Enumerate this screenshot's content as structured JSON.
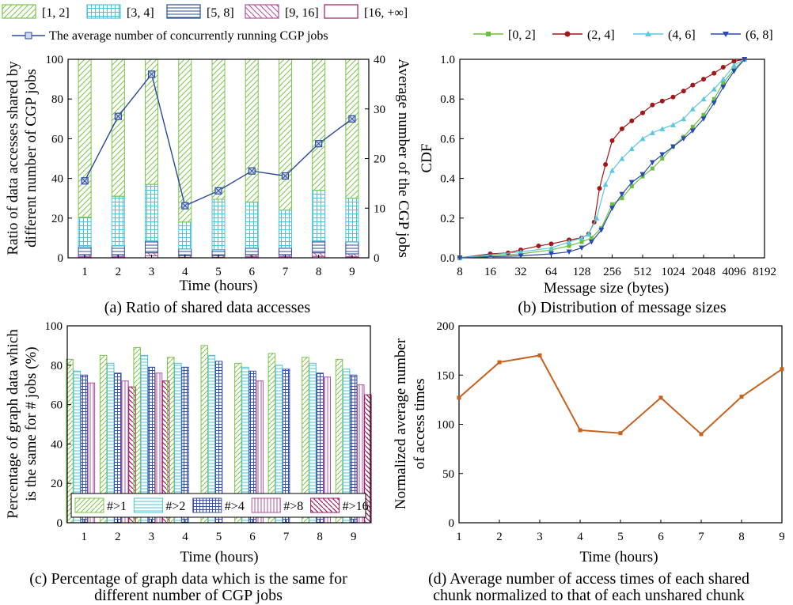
{
  "charts": {
    "a": {
      "type": "bar",
      "caption": "(a) Ratio of shared data accesses",
      "xlabel": "Time (hours)",
      "ylabel_line1": "Ratio of data accesses shared by",
      "ylabel_line2": "different number of CGP jobs",
      "y2label": "Average number of the CGP jobs",
      "legend": [
        "[1, 2]",
        "[3, 4]",
        "[5, 8]",
        "[9, 16]",
        "[16, +∞]"
      ],
      "line_legend": "The average number of concurrently running CGP jobs"
    },
    "b": {
      "type": "line",
      "caption": "(b) Distribution of message sizes",
      "xlabel": "Message size (bytes)",
      "ylabel": "CDF",
      "legend": [
        "[0, 2]",
        "(2, 4]",
        "(4, 6]",
        "(6, 8]"
      ]
    },
    "c": {
      "type": "bar",
      "caption_line1": "(c) Percentage of graph data which is the same for",
      "caption_line2": "different number of CGP jobs",
      "xlabel": "Time (hours)",
      "ylabel_line1": "Percentage of graph data which",
      "ylabel_line2": "is the same for # jobs (%)",
      "legend": [
        "#>1",
        "#>2",
        "#>4",
        "#>8",
        "#>16"
      ]
    },
    "d": {
      "type": "line",
      "caption_line1": "(d) Average number of access times of each shared",
      "caption_line2": "chunk normalized to that of each unshared chunk",
      "xlabel": "Time (hours)",
      "ylabel_line1": "Normalized average number",
      "ylabel_line2": "of access times"
    }
  },
  "chart_data": [
    {
      "id": "a",
      "type": "bar",
      "stacked": true,
      "x": [
        1,
        2,
        3,
        4,
        5,
        6,
        7,
        8,
        9
      ],
      "ylim": [
        0,
        100
      ],
      "y2lim": [
        0,
        40
      ],
      "yticks": [
        0,
        20,
        40,
        60,
        80,
        100
      ],
      "y2ticks": [
        0,
        10,
        20,
        30,
        40
      ],
      "colors": [
        "#7cc44a",
        "#4cc4d8",
        "#2a4a9a",
        "#b050a0",
        "#a01860"
      ],
      "series": [
        {
          "name": "[1, 2]",
          "values": [
            79.5,
            69,
            63,
            82,
            70.5,
            72,
            76,
            66,
            70
          ]
        },
        {
          "name": "[3, 4]",
          "values": [
            15,
            25,
            28.5,
            13.5,
            25.5,
            23,
            19,
            25.5,
            22
          ]
        },
        {
          "name": "[5, 8]",
          "values": [
            4,
            4.5,
            6,
            3.5,
            3,
            3.5,
            3.5,
            6,
            6
          ]
        },
        {
          "name": "[9, 16]",
          "values": [
            1,
            1,
            1.5,
            0.8,
            0.8,
            1,
            1,
            1.8,
            1.5
          ]
        },
        {
          "name": "[16, +∞]",
          "values": [
            0.5,
            0.5,
            1,
            0.2,
            0.2,
            0.5,
            0.5,
            0.7,
            0.5
          ]
        }
      ],
      "line_series": {
        "name": "The average number of concurrently running CGP jobs",
        "color": "#2a4a9a",
        "values": [
          15.5,
          28.5,
          37,
          10.5,
          13.5,
          17.5,
          16.5,
          23,
          28
        ]
      }
    },
    {
      "id": "b",
      "type": "line",
      "xscale": "log2",
      "xticks": [
        8,
        16,
        32,
        64,
        128,
        256,
        512,
        1024,
        2048,
        4096,
        8192
      ],
      "xlim": [
        8,
        8192
      ],
      "ylim": [
        0,
        1
      ],
      "yticks": [
        0.0,
        0.2,
        0.4,
        0.6,
        0.8,
        1.0
      ],
      "series": [
        {
          "name": "[0, 2]",
          "color": "#6cc040",
          "points": [
            [
              8,
              0
            ],
            [
              16,
              0.01
            ],
            [
              32,
              0.02
            ],
            [
              64,
              0.04
            ],
            [
              96,
              0.06
            ],
            [
              128,
              0.08
            ],
            [
              160,
              0.1
            ],
            [
              200,
              0.15
            ],
            [
              256,
              0.27
            ],
            [
              320,
              0.3
            ],
            [
              400,
              0.36
            ],
            [
              512,
              0.41
            ],
            [
              640,
              0.45
            ],
            [
              800,
              0.5
            ],
            [
              1024,
              0.56
            ],
            [
              1300,
              0.61
            ],
            [
              1600,
              0.66
            ],
            [
              2048,
              0.72
            ],
            [
              2600,
              0.8
            ],
            [
              3200,
              0.88
            ],
            [
              4096,
              0.95
            ],
            [
              5200,
              1.0
            ]
          ]
        },
        {
          "name": "(2, 4]",
          "color": "#a01818",
          "points": [
            [
              8,
              0
            ],
            [
              16,
              0.02
            ],
            [
              24,
              0.025
            ],
            [
              32,
              0.04
            ],
            [
              48,
              0.06
            ],
            [
              64,
              0.07
            ],
            [
              96,
              0.09
            ],
            [
              128,
              0.1
            ],
            [
              150,
              0.12
            ],
            [
              170,
              0.18
            ],
            [
              192,
              0.35
            ],
            [
              220,
              0.47
            ],
            [
              256,
              0.59
            ],
            [
              320,
              0.65
            ],
            [
              400,
              0.69
            ],
            [
              512,
              0.73
            ],
            [
              640,
              0.77
            ],
            [
              800,
              0.79
            ],
            [
              1024,
              0.81
            ],
            [
              1300,
              0.84
            ],
            [
              1600,
              0.87
            ],
            [
              2048,
              0.9
            ],
            [
              2600,
              0.93
            ],
            [
              3200,
              0.96
            ],
            [
              4096,
              0.99
            ],
            [
              5200,
              1.0
            ]
          ]
        },
        {
          "name": "(4, 6]",
          "color": "#5cc8e0",
          "points": [
            [
              8,
              0
            ],
            [
              32,
              0.03
            ],
            [
              64,
              0.05
            ],
            [
              96,
              0.08
            ],
            [
              128,
              0.1
            ],
            [
              150,
              0.12
            ],
            [
              180,
              0.2
            ],
            [
              220,
              0.37
            ],
            [
              256,
              0.44
            ],
            [
              320,
              0.5
            ],
            [
              400,
              0.55
            ],
            [
              512,
              0.6
            ],
            [
              640,
              0.63
            ],
            [
              800,
              0.65
            ],
            [
              1024,
              0.67
            ],
            [
              1300,
              0.7
            ],
            [
              1600,
              0.75
            ],
            [
              2048,
              0.8
            ],
            [
              2600,
              0.85
            ],
            [
              3200,
              0.9
            ],
            [
              4096,
              0.97
            ],
            [
              5200,
              1.0
            ]
          ]
        },
        {
          "name": "(6, 8]",
          "color": "#2a4ab0",
          "points": [
            [
              8,
              0
            ],
            [
              32,
              0.01
            ],
            [
              64,
              0.02
            ],
            [
              96,
              0.03
            ],
            [
              128,
              0.05
            ],
            [
              160,
              0.08
            ],
            [
              200,
              0.14
            ],
            [
              256,
              0.25
            ],
            [
              320,
              0.32
            ],
            [
              400,
              0.38
            ],
            [
              512,
              0.42
            ],
            [
              640,
              0.48
            ],
            [
              800,
              0.52
            ],
            [
              1024,
              0.56
            ],
            [
              1300,
              0.6
            ],
            [
              1600,
              0.64
            ],
            [
              2048,
              0.7
            ],
            [
              2600,
              0.78
            ],
            [
              3200,
              0.86
            ],
            [
              4096,
              0.94
            ],
            [
              5200,
              1.0
            ]
          ]
        }
      ]
    },
    {
      "id": "c",
      "type": "bar",
      "x": [
        1,
        2,
        3,
        4,
        5,
        6,
        7,
        8,
        9
      ],
      "ylim": [
        0,
        100
      ],
      "yticks": [
        0,
        20,
        40,
        60,
        80,
        100
      ],
      "colors": [
        "#7cc44a",
        "#4cc4d8",
        "#3a52a8",
        "#b050a0",
        "#a01860"
      ],
      "series": [
        {
          "name": "#>1",
          "values": [
            83,
            85,
            89,
            84,
            90,
            81,
            86,
            84,
            83
          ]
        },
        {
          "name": "#>2",
          "values": [
            77,
            81,
            85,
            81,
            85,
            79,
            80,
            81,
            78
          ]
        },
        {
          "name": "#>4",
          "values": [
            75,
            76,
            79,
            79,
            82,
            77,
            78,
            76,
            75
          ]
        },
        {
          "name": "#>8",
          "values": [
            71,
            72,
            76,
            0,
            0,
            72,
            0,
            74,
            70
          ]
        },
        {
          "name": "#>16",
          "values": [
            0,
            69,
            72,
            0,
            0,
            0,
            0,
            0,
            65
          ]
        }
      ]
    },
    {
      "id": "d",
      "type": "line",
      "x": [
        1,
        2,
        3,
        4,
        5,
        6,
        7,
        8,
        9
      ],
      "xlim": [
        1,
        9
      ],
      "ylim": [
        0,
        200
      ],
      "yticks": [
        0,
        50,
        100,
        150,
        200
      ],
      "color": "#c8601e",
      "values": [
        127,
        163,
        170,
        94,
        91,
        127,
        90,
        128,
        156
      ]
    }
  ]
}
